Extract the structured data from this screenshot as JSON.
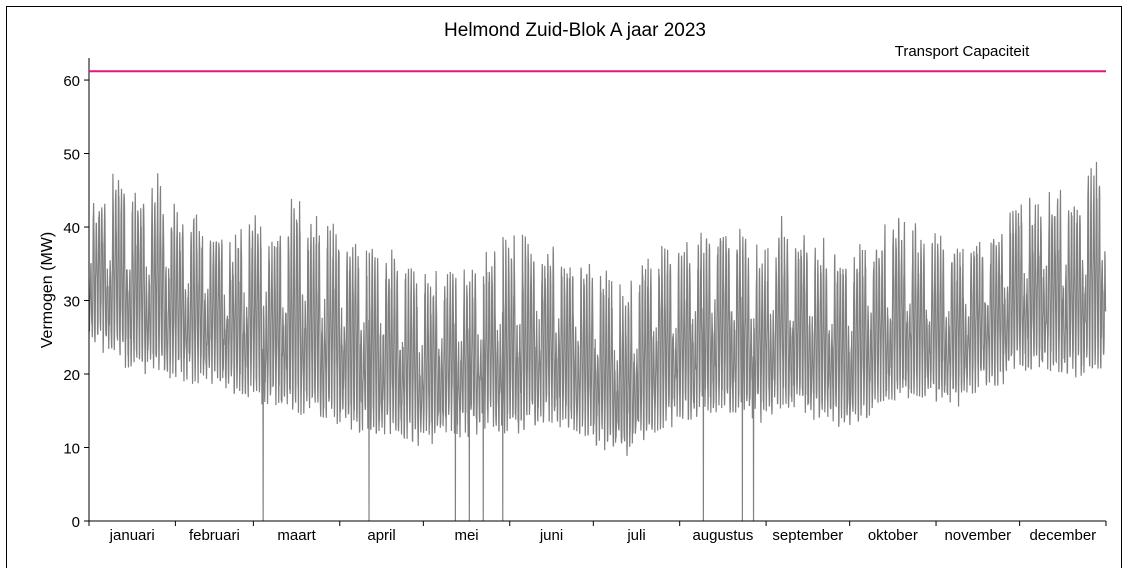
{
  "chart_data": {
    "type": "line",
    "title": "Helmond Zuid-Blok A jaar 2023",
    "ylabel": "Vermogen (MW)",
    "xlabel": "",
    "ylim": [
      0,
      63
    ],
    "yticks": [
      0,
      10,
      20,
      30,
      40,
      50,
      60
    ],
    "month_labels": [
      "januari",
      "februari",
      "maart",
      "april",
      "mei",
      "juni",
      "juli",
      "augustus",
      "september",
      "oktober",
      "november",
      "december"
    ],
    "month_boundaries_day": [
      0,
      31,
      59,
      90,
      120,
      151,
      181,
      212,
      243,
      273,
      304,
      334,
      365
    ],
    "capacity": {
      "label": "Transport Capaciteit",
      "value": 61.2,
      "color": "#e0157f"
    },
    "series": [
      {
        "color": "#808080",
        "weekly_daily_max_MW": [
          44,
          47,
          45,
          46,
          43,
          41,
          40,
          38,
          42,
          39,
          44,
          41,
          40,
          38,
          37,
          36,
          34,
          33,
          35,
          34,
          36,
          38,
          39,
          37,
          36,
          35,
          34,
          30,
          36,
          38,
          37,
          39,
          41,
          40,
          35,
          41,
          39,
          38,
          36,
          38,
          39,
          41,
          40,
          39,
          37,
          38,
          40,
          44,
          43,
          45,
          44,
          48,
          50,
          49,
          51,
          47,
          45,
          43,
          39,
          36,
          33
        ],
        "weekly_night_min_MW": [
          22,
          20,
          19,
          18,
          18,
          17,
          17,
          16,
          15,
          14,
          13,
          13,
          12,
          11,
          10,
          10,
          9,
          9,
          10,
          10,
          11,
          10,
          11,
          12,
          11,
          10,
          8,
          7,
          9,
          11,
          12,
          13,
          13,
          13,
          12,
          14,
          13,
          12,
          11,
          12,
          14,
          15,
          15,
          14,
          14,
          16,
          17,
          18,
          19,
          19,
          18,
          19,
          18,
          18,
          17,
          16,
          17,
          18,
          17,
          17,
          18
        ],
        "zero_dips_day": [
          62,
          100,
          131,
          136,
          141,
          148,
          220,
          234,
          238
        ]
      }
    ]
  }
}
